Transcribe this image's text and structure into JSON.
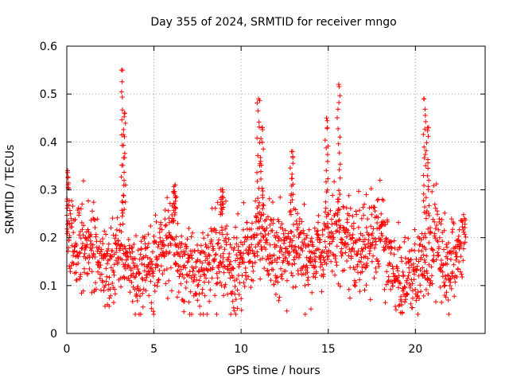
{
  "chart_data": {
    "type": "scatter",
    "title": "Day 355 of 2024, SRMTID for receiver mngo",
    "xlabel": "GPS time / hours",
    "ylabel": "SRMTID / TECUs",
    "xlim": [
      0,
      24
    ],
    "ylim": [
      0,
      0.6
    ],
    "xticks": [
      0,
      5,
      10,
      15,
      20
    ],
    "xtick_labels": [
      "0",
      "5",
      "10",
      "15",
      "20"
    ],
    "yticks": [
      0,
      0.1,
      0.2,
      0.3,
      0.4,
      0.5,
      0.6
    ],
    "ytick_labels": [
      "0",
      "0.1",
      "0.2",
      "0.3",
      "0.4",
      "0.5",
      "0.6"
    ],
    "grid": true,
    "marker": "+",
    "color": "#ff0000",
    "series": [
      {
        "name": "SRMTID",
        "x_range": [
          0,
          22.9
        ],
        "typical_range": [
          0.05,
          0.3
        ],
        "peaks": [
          {
            "x": 0.05,
            "y": 0.34
          },
          {
            "x": 3.2,
            "y": 0.55
          },
          {
            "x": 3.3,
            "y": 0.46
          },
          {
            "x": 6.2,
            "y": 0.31
          },
          {
            "x": 8.9,
            "y": 0.3
          },
          {
            "x": 11.0,
            "y": 0.49
          },
          {
            "x": 11.2,
            "y": 0.43
          },
          {
            "x": 12.9,
            "y": 0.38
          },
          {
            "x": 14.9,
            "y": 0.45
          },
          {
            "x": 15.6,
            "y": 0.52
          },
          {
            "x": 20.5,
            "y": 0.49
          },
          {
            "x": 20.7,
            "y": 0.43
          }
        ]
      }
    ]
  }
}
